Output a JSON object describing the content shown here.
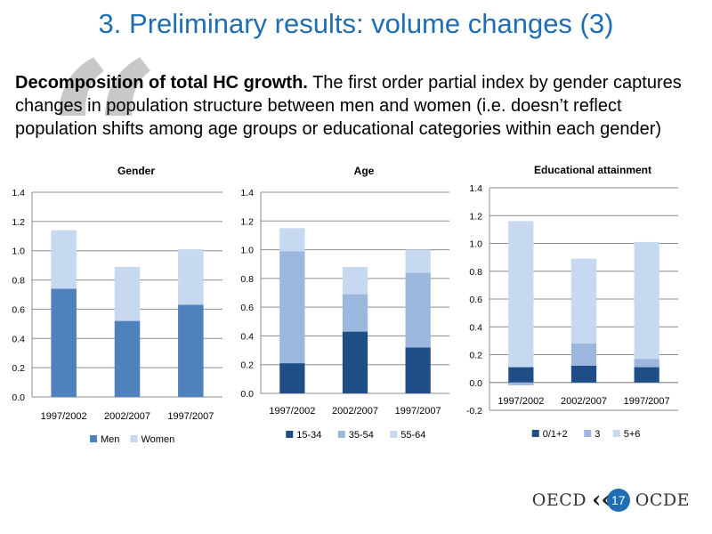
{
  "slide": {
    "title": "3. Preliminary results: volume changes (3)",
    "body_bold": "Decomposition of total HC growth.",
    "body_rest": " The first order partial index by gender captures changes in population structure between men and women (i.e. doesn’t reflect population shifts among age groups or educational categories within each gender)"
  },
  "footer": {
    "org_left": "OECD",
    "org_right": "OCDE",
    "page_number": "17"
  },
  "colors": {
    "title": "#1f6db3",
    "series_dark": "#1f4e86",
    "series_mid": "#4f81bd",
    "series_light": "#9bb7dd",
    "series_pale": "#c6d9f1"
  },
  "chart_data": [
    {
      "type": "bar",
      "stacked": true,
      "title": "Gender",
      "categories": [
        "1997/2002",
        "2002/2007",
        "1997/2007"
      ],
      "ylim": [
        0,
        1.4
      ],
      "yticks": [
        "0.0",
        "0.2",
        "0.4",
        "0.6",
        "0.8",
        "1.0",
        "1.2",
        "1.4"
      ],
      "grid": true,
      "legend": "bottom",
      "series": [
        {
          "name": "Men",
          "values": [
            0.74,
            0.52,
            0.63
          ],
          "color": "#4f81bd"
        },
        {
          "name": "Women",
          "values": [
            0.4,
            0.37,
            0.38
          ],
          "color": "#c6d9f1"
        }
      ]
    },
    {
      "type": "bar",
      "stacked": true,
      "title": "Age",
      "categories": [
        "1997/2002",
        "2002/2007",
        "1997/2007"
      ],
      "ylim": [
        0,
        1.4
      ],
      "yticks": [
        "0.0",
        "0.2",
        "0.4",
        "0.6",
        "0.8",
        "1.0",
        "1.2",
        "1.4"
      ],
      "grid": true,
      "legend": "bottom",
      "series": [
        {
          "name": "15-34",
          "values": [
            0.21,
            0.43,
            0.32
          ],
          "color": "#1f4e86"
        },
        {
          "name": "35-54",
          "values": [
            0.78,
            0.26,
            0.52
          ],
          "color": "#9bb7dd"
        },
        {
          "name": "55-64",
          "values": [
            0.16,
            0.19,
            0.16
          ],
          "color": "#c6d9f1"
        }
      ]
    },
    {
      "type": "bar",
      "stacked": true,
      "title": "Educational attainment",
      "categories": [
        "1997/2002",
        "2002/2007",
        "1997/2007"
      ],
      "ylim": [
        -0.2,
        1.4
      ],
      "yticks": [
        "-0.2",
        "0.0",
        "0.2",
        "0.4",
        "0.6",
        "0.8",
        "1.0",
        "1.2",
        "1.4"
      ],
      "grid": true,
      "legend": "bottom",
      "series": [
        {
          "name": "0/1+2",
          "values": [
            0.11,
            0.12,
            0.11
          ],
          "color": "#1f4e86"
        },
        {
          "name": "3",
          "values": [
            -0.02,
            0.16,
            0.06
          ],
          "color": "#9bb7dd"
        },
        {
          "name": "5+6",
          "values": [
            1.05,
            0.61,
            0.84
          ],
          "color": "#c6d9f1"
        }
      ]
    }
  ]
}
